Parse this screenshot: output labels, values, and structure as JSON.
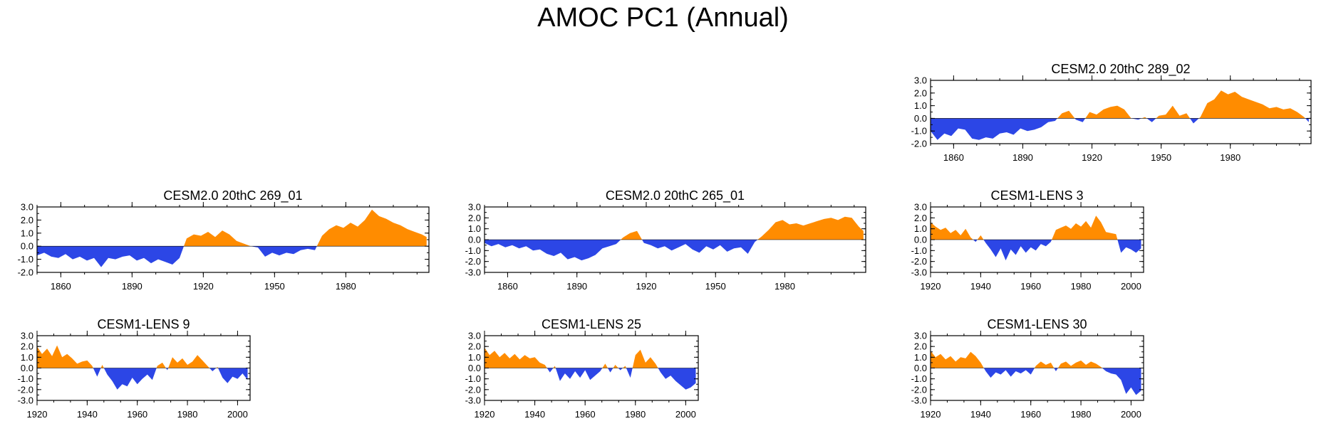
{
  "figure": {
    "title": "AMOC PC1 (Annual)"
  },
  "colors": {
    "positive": "#ff8c00",
    "negative": "#2c46e6",
    "axis": "#000000"
  },
  "chart_data": [
    {
      "id": "cesm2-289-02",
      "type": "area",
      "title": "CESM2.0 20thC 289_02",
      "xlim": [
        1850,
        2015
      ],
      "ylim": [
        -2.0,
        3.0
      ],
      "yticks": [
        3.0,
        2.0,
        1.0,
        0.0,
        -1.0,
        -2.0
      ],
      "ytick_labels": [
        "3.0",
        "2.0",
        "1.0",
        "0.0",
        "-1.0",
        "-2.0"
      ],
      "xticks": [
        1860,
        1890,
        1920,
        1950,
        1980
      ],
      "xtick_labels": [
        "1860",
        "1890",
        "1920",
        "1950",
        "1980"
      ],
      "x": [
        1850,
        1853,
        1856,
        1859,
        1862,
        1865,
        1868,
        1871,
        1874,
        1877,
        1880,
        1883,
        1886,
        1889,
        1892,
        1895,
        1898,
        1901,
        1904,
        1907,
        1910,
        1913,
        1916,
        1919,
        1922,
        1925,
        1928,
        1931,
        1934,
        1937,
        1940,
        1943,
        1946,
        1949,
        1952,
        1955,
        1958,
        1961,
        1964,
        1967,
        1970,
        1973,
        1976,
        1979,
        1982,
        1985,
        1988,
        1991,
        1994,
        1997,
        2000,
        2003,
        2006,
        2009,
        2012,
        2014
      ],
      "values": [
        -1.0,
        -1.7,
        -1.2,
        -1.4,
        -0.8,
        -0.9,
        -1.6,
        -1.7,
        -1.5,
        -1.6,
        -1.2,
        -1.1,
        -1.3,
        -0.8,
        -1.0,
        -0.9,
        -0.7,
        -0.3,
        -0.2,
        0.4,
        0.6,
        -0.1,
        -0.3,
        0.5,
        0.3,
        0.7,
        0.9,
        1.0,
        0.7,
        0.0,
        -0.1,
        0.1,
        -0.3,
        0.2,
        0.3,
        1.0,
        0.2,
        0.4,
        -0.4,
        0.1,
        1.2,
        1.5,
        2.2,
        1.9,
        2.1,
        1.7,
        1.5,
        1.3,
        1.1,
        0.8,
        0.9,
        0.7,
        0.8,
        0.5,
        0.1,
        -0.3
      ]
    },
    {
      "id": "cesm2-269-01",
      "type": "area",
      "title": "CESM2.0 20thC 269_01",
      "xlim": [
        1850,
        2015
      ],
      "ylim": [
        -2.0,
        3.0
      ],
      "yticks": [
        3.0,
        2.0,
        1.0,
        0.0,
        -1.0,
        -2.0
      ],
      "ytick_labels": [
        "3.0",
        "2.0",
        "1.0",
        "0.0",
        "-1.0",
        "-2.0"
      ],
      "xticks": [
        1860,
        1890,
        1920,
        1950,
        1980
      ],
      "xtick_labels": [
        "1860",
        "1890",
        "1920",
        "1950",
        "1980"
      ],
      "x": [
        1850,
        1853,
        1856,
        1859,
        1862,
        1865,
        1868,
        1871,
        1874,
        1877,
        1880,
        1883,
        1886,
        1889,
        1892,
        1895,
        1898,
        1901,
        1904,
        1907,
        1910,
        1913,
        1916,
        1919,
        1922,
        1925,
        1928,
        1931,
        1934,
        1937,
        1940,
        1943,
        1946,
        1949,
        1952,
        1955,
        1958,
        1961,
        1964,
        1967,
        1970,
        1973,
        1976,
        1979,
        1982,
        1985,
        1988,
        1991,
        1994,
        1997,
        2000,
        2003,
        2006,
        2009,
        2012,
        2014
      ],
      "values": [
        -0.7,
        -0.5,
        -0.8,
        -0.9,
        -0.6,
        -1.0,
        -0.8,
        -1.1,
        -0.9,
        -1.6,
        -0.9,
        -1.0,
        -0.8,
        -0.7,
        -1.1,
        -0.9,
        -1.3,
        -1.0,
        -1.2,
        -1.4,
        -0.9,
        0.6,
        0.9,
        0.8,
        1.1,
        0.7,
        1.2,
        0.9,
        0.4,
        0.2,
        0.0,
        -0.1,
        -0.8,
        -0.5,
        -0.7,
        -0.5,
        -0.6,
        -0.3,
        -0.2,
        -0.3,
        0.8,
        1.3,
        1.6,
        1.4,
        1.8,
        1.5,
        2.0,
        2.8,
        2.3,
        2.1,
        1.8,
        1.6,
        1.3,
        1.1,
        0.9,
        0.7
      ]
    },
    {
      "id": "cesm2-265-01",
      "type": "area",
      "title": "CESM2.0 20thC 265_01",
      "xlim": [
        1850,
        2015
      ],
      "ylim": [
        -3.0,
        3.0
      ],
      "yticks": [
        3.0,
        2.0,
        1.0,
        0.0,
        -1.0,
        -2.0,
        -3.0
      ],
      "ytick_labels": [
        "3.0",
        "2.0",
        "1.0",
        "0.0",
        "-1.0",
        "-2.0",
        "-3.0"
      ],
      "xticks": [
        1860,
        1890,
        1920,
        1950,
        1980
      ],
      "xtick_labels": [
        "1860",
        "1890",
        "1920",
        "1950",
        "1980"
      ],
      "x": [
        1850,
        1853,
        1856,
        1859,
        1862,
        1865,
        1868,
        1871,
        1874,
        1877,
        1880,
        1883,
        1886,
        1889,
        1892,
        1895,
        1898,
        1901,
        1904,
        1907,
        1910,
        1913,
        1916,
        1919,
        1922,
        1925,
        1928,
        1931,
        1934,
        1937,
        1940,
        1943,
        1946,
        1949,
        1952,
        1955,
        1958,
        1961,
        1964,
        1967,
        1970,
        1973,
        1976,
        1979,
        1982,
        1985,
        1988,
        1991,
        1994,
        1997,
        2000,
        2003,
        2006,
        2009,
        2012,
        2014
      ],
      "values": [
        -0.3,
        -0.6,
        -0.4,
        -0.7,
        -0.5,
        -0.8,
        -0.6,
        -1.0,
        -0.9,
        -1.3,
        -1.5,
        -1.2,
        -1.8,
        -1.6,
        -1.9,
        -1.7,
        -1.4,
        -0.8,
        -0.6,
        -0.4,
        0.2,
        0.6,
        0.8,
        -0.3,
        -0.5,
        -0.8,
        -0.6,
        -1.0,
        -0.7,
        -0.4,
        -0.9,
        -1.2,
        -0.6,
        -0.9,
        -0.5,
        -1.1,
        -0.8,
        -0.7,
        -1.3,
        -0.2,
        0.3,
        0.9,
        1.6,
        1.8,
        1.4,
        1.5,
        1.3,
        1.5,
        1.7,
        1.9,
        2.0,
        1.8,
        2.1,
        2.0,
        1.2,
        0.8
      ]
    },
    {
      "id": "cesm1-lens-3",
      "type": "area",
      "title": "CESM1-LENS 3",
      "xlim": [
        1920,
        2005
      ],
      "ylim": [
        -3.0,
        3.0
      ],
      "yticks": [
        3.0,
        2.0,
        1.0,
        0.0,
        -1.0,
        -2.0,
        -3.0
      ],
      "ytick_labels": [
        "3.0",
        "2.0",
        "1.0",
        "0.0",
        "-1.0",
        "-2.0",
        "-3.0"
      ],
      "xticks": [
        1920,
        1940,
        1960,
        1980,
        2000
      ],
      "xtick_labels": [
        "1920",
        "1940",
        "1960",
        "1980",
        "2000"
      ],
      "x": [
        1920,
        1922,
        1924,
        1926,
        1928,
        1930,
        1932,
        1934,
        1936,
        1938,
        1940,
        1942,
        1944,
        1946,
        1948,
        1950,
        1952,
        1954,
        1956,
        1958,
        1960,
        1962,
        1964,
        1966,
        1968,
        1970,
        1972,
        1974,
        1976,
        1978,
        1980,
        1982,
        1984,
        1986,
        1988,
        1990,
        1992,
        1994,
        1996,
        1998,
        2000,
        2002,
        2004
      ],
      "values": [
        1.6,
        1.2,
        0.9,
        1.1,
        0.6,
        0.9,
        0.4,
        1.0,
        0.2,
        -0.2,
        0.4,
        -0.3,
        -0.9,
        -1.6,
        -0.8,
        -1.9,
        -0.9,
        -1.4,
        -0.6,
        -1.2,
        -0.7,
        -1.0,
        -0.4,
        -0.6,
        -0.2,
        0.9,
        1.1,
        1.3,
        1.0,
        1.5,
        1.2,
        1.7,
        1.1,
        2.2,
        1.6,
        0.7,
        0.6,
        0.5,
        -1.2,
        -0.7,
        -0.9,
        -1.2,
        -0.8
      ]
    },
    {
      "id": "cesm1-lens-9",
      "type": "area",
      "title": "CESM1-LENS 9",
      "xlim": [
        1920,
        2005
      ],
      "ylim": [
        -3.0,
        3.0
      ],
      "yticks": [
        3.0,
        2.0,
        1.0,
        0.0,
        -1.0,
        -2.0,
        -3.0
      ],
      "ytick_labels": [
        "3.0",
        "2.0",
        "1.0",
        "0.0",
        "-1.0",
        "-2.0",
        "-3.0"
      ],
      "xticks": [
        1920,
        1940,
        1960,
        1980,
        2000
      ],
      "xtick_labels": [
        "1920",
        "1940",
        "1960",
        "1980",
        "2000"
      ],
      "x": [
        1920,
        1922,
        1924,
        1926,
        1928,
        1930,
        1932,
        1934,
        1936,
        1938,
        1940,
        1942,
        1944,
        1946,
        1948,
        1950,
        1952,
        1954,
        1956,
        1958,
        1960,
        1962,
        1964,
        1966,
        1968,
        1970,
        1972,
        1974,
        1976,
        1978,
        1980,
        1982,
        1984,
        1986,
        1988,
        1990,
        1992,
        1994,
        1996,
        1998,
        2000,
        2002,
        2004
      ],
      "values": [
        2.0,
        1.3,
        1.8,
        1.1,
        2.1,
        1.0,
        1.3,
        0.9,
        0.4,
        0.6,
        0.7,
        0.2,
        -0.8,
        0.3,
        -0.6,
        -1.2,
        -2.0,
        -1.5,
        -1.7,
        -0.9,
        -1.5,
        -1.0,
        -0.6,
        -1.1,
        0.2,
        0.5,
        -0.2,
        1.0,
        0.5,
        0.9,
        0.3,
        0.6,
        1.2,
        0.7,
        0.2,
        -0.3,
        0.1,
        -0.9,
        -1.4,
        -0.8,
        -1.0,
        -0.5,
        -1.1
      ]
    },
    {
      "id": "cesm1-lens-25",
      "type": "area",
      "title": "CESM1-LENS 25",
      "xlim": [
        1920,
        2005
      ],
      "ylim": [
        -3.0,
        3.0
      ],
      "yticks": [
        3.0,
        2.0,
        1.0,
        0.0,
        -1.0,
        -2.0,
        -3.0
      ],
      "ytick_labels": [
        "3.0",
        "2.0",
        "1.0",
        "0.0",
        "-1.0",
        "-2.0",
        "-3.0"
      ],
      "xticks": [
        1920,
        1940,
        1960,
        1980,
        2000
      ],
      "xtick_labels": [
        "1920",
        "1940",
        "1960",
        "1980",
        "2000"
      ],
      "x": [
        1920,
        1922,
        1924,
        1926,
        1928,
        1930,
        1932,
        1934,
        1936,
        1938,
        1940,
        1942,
        1944,
        1946,
        1948,
        1950,
        1952,
        1954,
        1956,
        1958,
        1960,
        1962,
        1964,
        1966,
        1968,
        1970,
        1972,
        1974,
        1976,
        1978,
        1980,
        1982,
        1984,
        1986,
        1988,
        1990,
        1992,
        1994,
        1996,
        1998,
        2000,
        2002,
        2004
      ],
      "values": [
        1.9,
        1.2,
        1.6,
        1.0,
        1.4,
        0.9,
        1.3,
        0.8,
        1.2,
        0.9,
        1.0,
        0.5,
        0.3,
        -0.4,
        0.2,
        -1.2,
        -0.5,
        -1.0,
        -0.3,
        -0.9,
        -0.2,
        -1.1,
        -0.7,
        -0.3,
        0.4,
        -0.4,
        0.3,
        -0.2,
        0.2,
        -0.9,
        1.2,
        1.7,
        0.5,
        1.0,
        0.4,
        -0.4,
        -1.0,
        -0.7,
        -1.2,
        -1.6,
        -2.0,
        -1.8,
        -1.4
      ]
    },
    {
      "id": "cesm1-lens-30",
      "type": "area",
      "title": "CESM1-LENS 30",
      "xlim": [
        1920,
        2005
      ],
      "ylim": [
        -3.0,
        3.0
      ],
      "yticks": [
        3.0,
        2.0,
        1.0,
        0.0,
        -1.0,
        -2.0,
        -3.0
      ],
      "ytick_labels": [
        "3.0",
        "2.0",
        "1.0",
        "0.0",
        "-1.0",
        "-2.0",
        "-3.0"
      ],
      "xticks": [
        1920,
        1940,
        1960,
        1980,
        2000
      ],
      "xtick_labels": [
        "1920",
        "1940",
        "1960",
        "1980",
        "2000"
      ],
      "x": [
        1920,
        1922,
        1924,
        1926,
        1928,
        1930,
        1932,
        1934,
        1936,
        1938,
        1940,
        1942,
        1944,
        1946,
        1948,
        1950,
        1952,
        1954,
        1956,
        1958,
        1960,
        1962,
        1964,
        1966,
        1968,
        1970,
        1972,
        1974,
        1976,
        1978,
        1980,
        1982,
        1984,
        1986,
        1988,
        1990,
        1992,
        1994,
        1996,
        1998,
        2000,
        2002,
        2004
      ],
      "values": [
        1.6,
        1.0,
        1.3,
        0.8,
        1.1,
        0.6,
        1.0,
        0.9,
        1.5,
        1.1,
        0.5,
        -0.3,
        -0.9,
        -0.4,
        -0.6,
        -0.2,
        -0.8,
        -0.3,
        -0.5,
        -0.2,
        -0.6,
        0.2,
        0.6,
        0.3,
        0.5,
        -0.3,
        0.4,
        0.6,
        0.2,
        0.5,
        0.7,
        0.3,
        0.6,
        0.4,
        0.1,
        -0.3,
        -0.5,
        -0.6,
        -1.1,
        -2.4,
        -1.8,
        -2.5,
        -2.1
      ]
    }
  ]
}
